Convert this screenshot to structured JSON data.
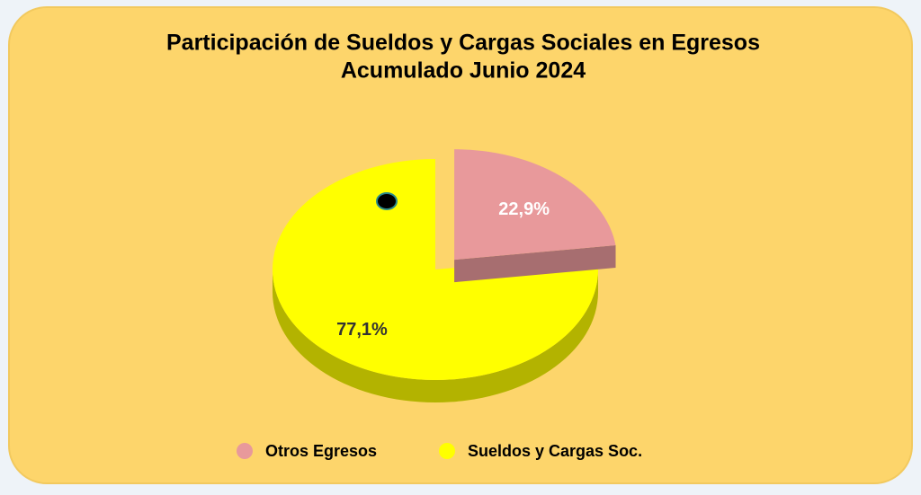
{
  "chart_data": {
    "type": "pie",
    "title": "Participación de Sueldos y Cargas Sociales en Egresos",
    "subtitle": "Acumulado Junio 2024",
    "categories": [
      "Otros Egresos",
      "Sueldos y Cargas Soc."
    ],
    "values": [
      22.9,
      77.1
    ],
    "value_labels": [
      "22,9%",
      "77,1%"
    ],
    "colors": [
      "#e8999b",
      "#ffff00"
    ],
    "legend": "bottom"
  }
}
